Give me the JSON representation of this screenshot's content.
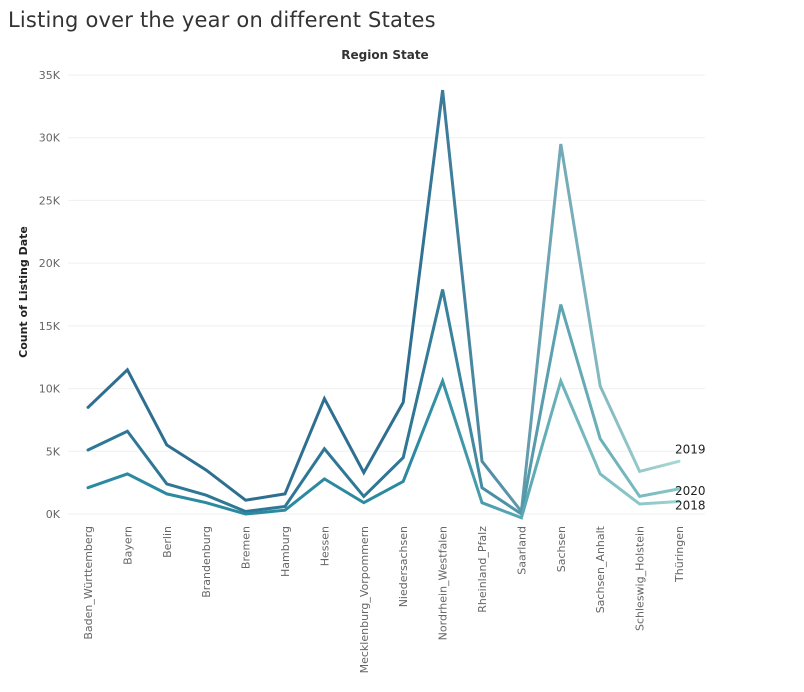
{
  "title": "Listing over the year on different States",
  "chart_data": {
    "type": "line",
    "header": "Region State",
    "ylabel": "Count of Listing Date",
    "xlabel": "",
    "ylim": [
      0,
      35000
    ],
    "yticks": [
      0,
      5000,
      10000,
      15000,
      20000,
      25000,
      30000,
      35000
    ],
    "ytick_labels": [
      "0K",
      "5K",
      "10K",
      "15K",
      "20K",
      "25K",
      "30K",
      "35K"
    ],
    "grid": true,
    "legend": "end-of-line labels",
    "categories": [
      "Baden_Württemberg",
      "Bayern",
      "Berlin",
      "Brandenburg",
      "Bremen",
      "Hamburg",
      "Hessen",
      "Mecklenburg_Vorpommern",
      "Niedersachsen",
      "Nordrhein_Westfalen",
      "Rheinland_Pfalz",
      "Saarland",
      "Sachsen",
      "Sachsen_Anhalt",
      "Schleswig_Holstein",
      "Thüringen"
    ],
    "series": [
      {
        "name": "2019",
        "values": [
          8500,
          11500,
          5500,
          3500,
          1100,
          1600,
          9200,
          3300,
          8900,
          33800,
          4200,
          200,
          29500,
          10200,
          3400,
          4200
        ],
        "color_dark": "#2e6f91",
        "color_light": "#a8d8d4"
      },
      {
        "name": "2020",
        "values": [
          5100,
          6600,
          2400,
          1500,
          200,
          600,
          5200,
          1400,
          4500,
          17900,
          2100,
          0,
          16700,
          6000,
          1400,
          2000
        ],
        "color_dark": "#2e7896",
        "color_light": "#86c6c6"
      },
      {
        "name": "2018",
        "values": [
          2100,
          3200,
          1600,
          900,
          0,
          300,
          2800,
          900,
          2600,
          10600,
          900,
          -300,
          10600,
          3200,
          800,
          1000
        ],
        "color_dark": "#2b8aa0",
        "color_light": "#9ed2cf"
      }
    ]
  }
}
